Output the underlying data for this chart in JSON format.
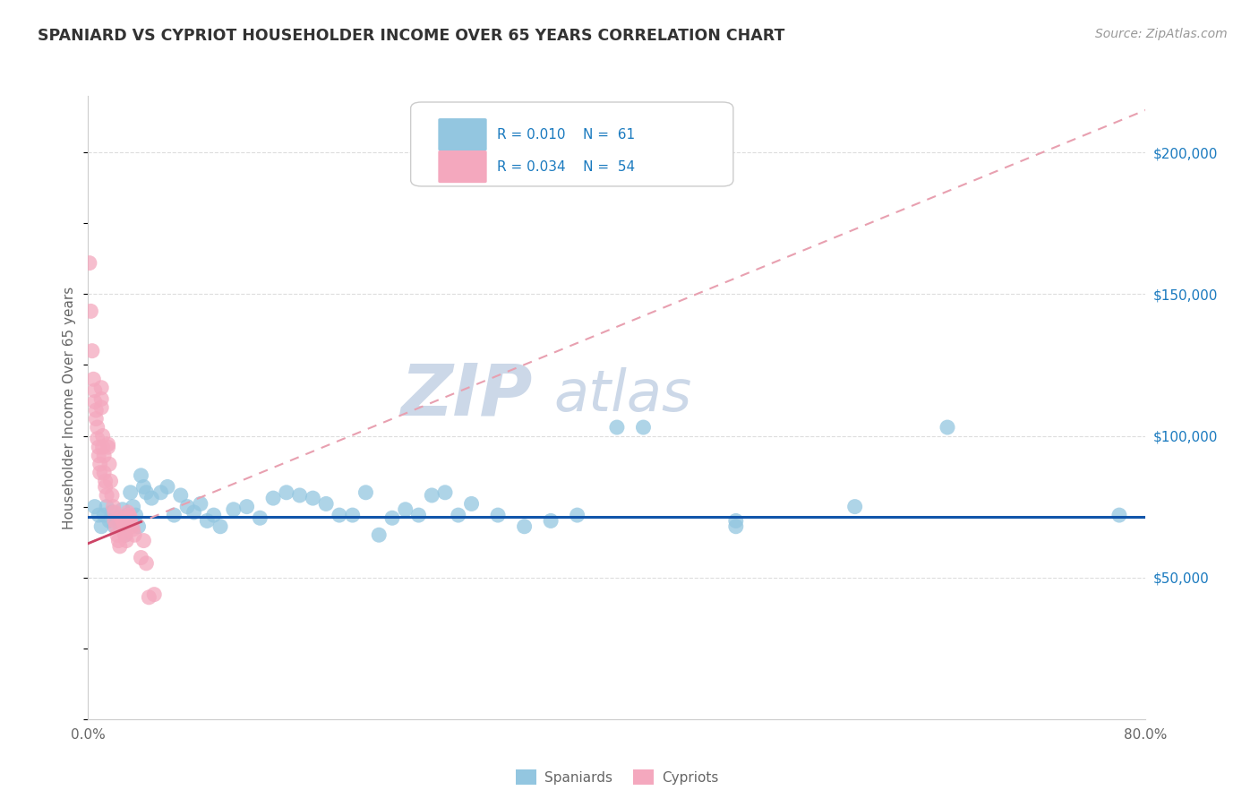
{
  "title": "SPANIARD VS CYPRIOT HOUSEHOLDER INCOME OVER 65 YEARS CORRELATION CHART",
  "source": "Source: ZipAtlas.com",
  "ylabel": "Householder Income Over 65 years",
  "xlim": [
    0.0,
    0.8
  ],
  "ylim": [
    0,
    220000
  ],
  "ytick_pos": [
    50000,
    100000,
    150000,
    200000
  ],
  "ytick_labels": [
    "$50,000",
    "$100,000",
    "$150,000",
    "$200,000"
  ],
  "spaniard_color": "#93c6e0",
  "cypriot_color": "#f4a8be",
  "spaniard_line_color": "#1155aa",
  "cypriot_line_color": "#cc4466",
  "cypriot_dash_color": "#e8a0b0",
  "watermark_color": "#ccd8e8",
  "title_color": "#333333",
  "source_color": "#999999",
  "tick_color": "#666666",
  "ytick_color": "#1a7abf",
  "grid_color": "#dddddd",
  "legend_border_color": "#cccccc",
  "spaniard_x": [
    0.005,
    0.008,
    0.01,
    0.012,
    0.014,
    0.016,
    0.018,
    0.02,
    0.022,
    0.024,
    0.026,
    0.028,
    0.03,
    0.032,
    0.034,
    0.036,
    0.038,
    0.04,
    0.042,
    0.044,
    0.048,
    0.055,
    0.06,
    0.065,
    0.07,
    0.075,
    0.08,
    0.085,
    0.09,
    0.095,
    0.1,
    0.11,
    0.12,
    0.13,
    0.14,
    0.15,
    0.16,
    0.17,
    0.18,
    0.19,
    0.2,
    0.21,
    0.22,
    0.23,
    0.24,
    0.25,
    0.26,
    0.27,
    0.28,
    0.29,
    0.31,
    0.33,
    0.35,
    0.37,
    0.4,
    0.42,
    0.49,
    0.49,
    0.58,
    0.65,
    0.78
  ],
  "spaniard_y": [
    75000,
    72000,
    68000,
    72000,
    75000,
    70000,
    73000,
    68000,
    71000,
    69000,
    74000,
    65000,
    72000,
    80000,
    75000,
    72000,
    68000,
    86000,
    82000,
    80000,
    78000,
    80000,
    82000,
    72000,
    79000,
    75000,
    73000,
    76000,
    70000,
    72000,
    68000,
    74000,
    75000,
    71000,
    78000,
    80000,
    79000,
    78000,
    76000,
    72000,
    72000,
    80000,
    65000,
    71000,
    74000,
    72000,
    79000,
    80000,
    72000,
    76000,
    72000,
    68000,
    70000,
    72000,
    103000,
    103000,
    68000,
    70000,
    75000,
    103000,
    72000
  ],
  "cypriot_x": [
    0.001,
    0.002,
    0.003,
    0.004,
    0.005,
    0.005,
    0.006,
    0.006,
    0.007,
    0.007,
    0.008,
    0.008,
    0.009,
    0.009,
    0.01,
    0.01,
    0.01,
    0.011,
    0.011,
    0.012,
    0.012,
    0.013,
    0.013,
    0.014,
    0.015,
    0.015,
    0.016,
    0.017,
    0.018,
    0.019,
    0.02,
    0.02,
    0.021,
    0.022,
    0.023,
    0.024,
    0.025,
    0.026,
    0.027,
    0.028,
    0.028,
    0.029,
    0.03,
    0.031,
    0.032,
    0.032,
    0.033,
    0.034,
    0.035,
    0.04,
    0.042,
    0.044,
    0.046,
    0.05
  ],
  "cypriot_y": [
    161000,
    144000,
    130000,
    120000,
    116000,
    112000,
    109000,
    106000,
    103000,
    99000,
    96000,
    93000,
    90000,
    87000,
    117000,
    113000,
    110000,
    100000,
    96000,
    93000,
    87000,
    84000,
    82000,
    79000,
    97000,
    96000,
    90000,
    84000,
    79000,
    75000,
    73000,
    70000,
    68000,
    65000,
    63000,
    61000,
    71000,
    70000,
    68000,
    66000,
    65000,
    63000,
    73000,
    72000,
    71000,
    70000,
    68000,
    67000,
    65000,
    57000,
    63000,
    55000,
    43000,
    44000
  ],
  "cypriot_trendline_x": [
    0.0,
    0.8
  ],
  "cypriot_trendline_y": [
    62000,
    215000
  ],
  "spaniard_trendline_y": [
    71500,
    71500
  ]
}
